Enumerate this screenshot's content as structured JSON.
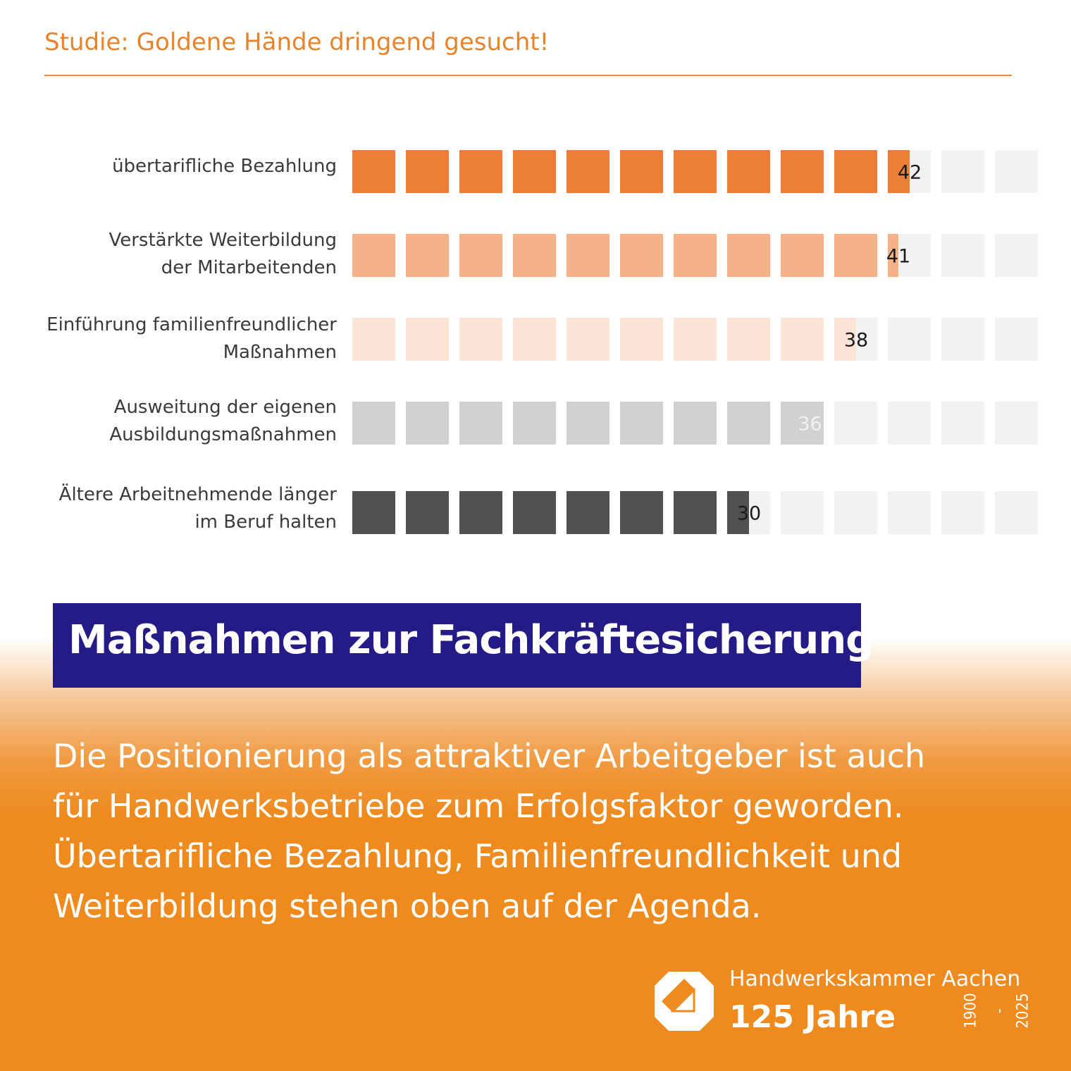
{
  "header": {
    "study_title": "Studie: Goldene Hände dringend gesucht!"
  },
  "chart_data": {
    "type": "bar",
    "orientation": "horizontal",
    "style": "pictogram-squares",
    "units_per_square": 4,
    "total_squares": 13,
    "categories": [
      [
        "übertarifliche Bezahlung"
      ],
      [
        "Verstärkte Weiterbildung",
        "der Mitarbeitenden"
      ],
      [
        "Einführung familienfreundlicher",
        "Maßnahmen"
      ],
      [
        "Ausweitung der eigenen",
        "Ausbildungsmaßnahmen"
      ],
      [
        "Ältere Arbeitnehmende länger",
        "im Beruf halten"
      ]
    ],
    "values": [
      42,
      41,
      38,
      36,
      30
    ],
    "value_labels": [
      "42",
      "41",
      "38",
      "36",
      "30"
    ],
    "colors": [
      "#ec7f35",
      "#f3b287",
      "#fbe3d6",
      "#d2d0d1",
      "#515151"
    ],
    "label_colors": [
      "#1a1a1a",
      "#1a1a1a",
      "#1a1a1a",
      "#f2f2f2",
      "#1a1a1a"
    ],
    "empty_color": "#f2f2f2",
    "xlim": [
      0,
      52
    ]
  },
  "headline": "Maßnahmen zur Fachkräftesicherung",
  "body": {
    "lines": [
      "Die Positionierung als attraktiver Arbeitgeber ist auch",
      "für Handwerksbetriebe zum Erfolgsfaktor geworden.",
      "Übertarifliche Bezahlung, Familienfreundlichkeit und",
      "Weiterbildung stehen oben auf der Agenda."
    ]
  },
  "footer": {
    "org_name": "Handwerkskammer Aachen",
    "anniversary": "125 Jahre",
    "year_start": "1900",
    "year_sep": "-",
    "year_end": "2025",
    "logo_icon": "hwk-logo-icon"
  }
}
